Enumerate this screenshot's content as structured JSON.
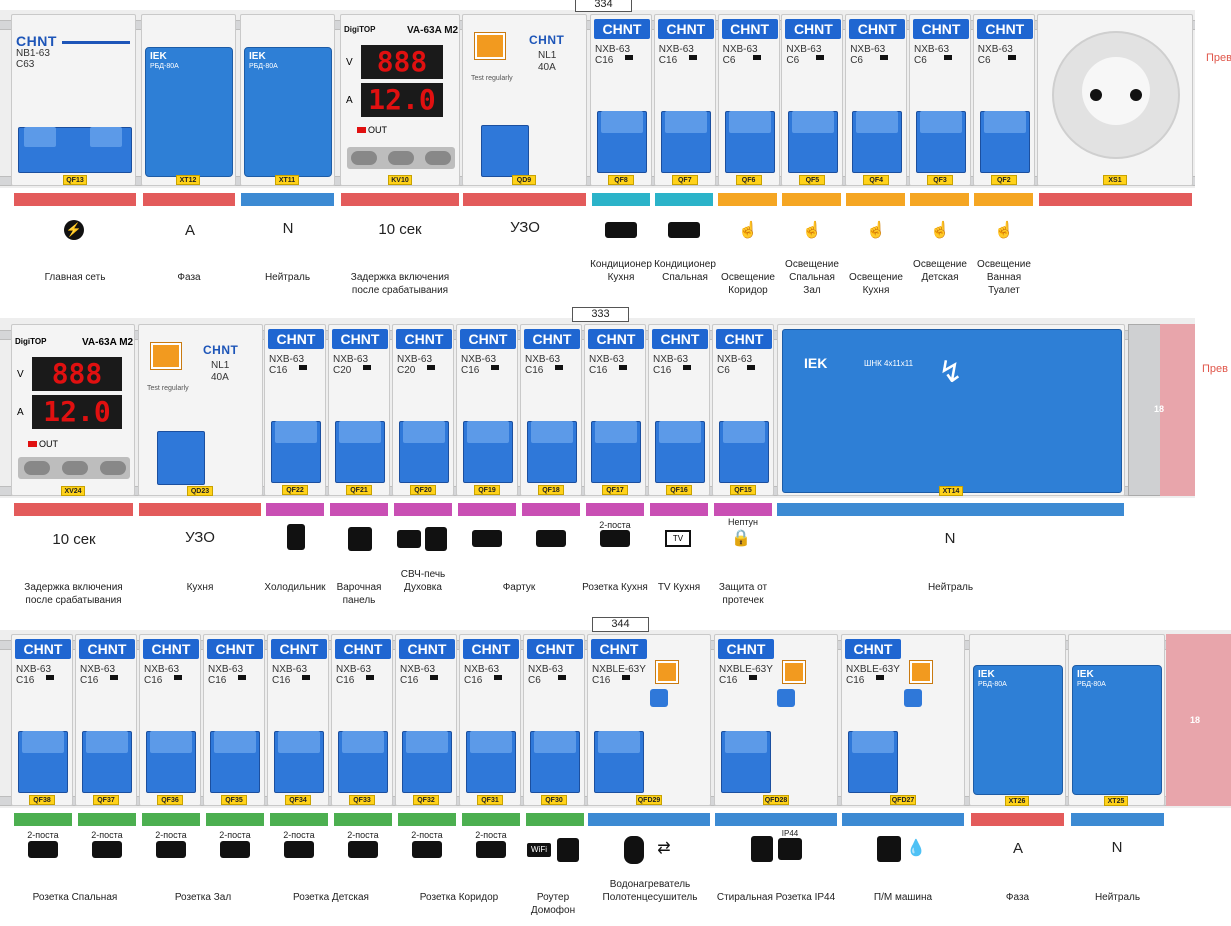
{
  "colors": {
    "red": "#e35b5b",
    "blue": "#3c8ad3",
    "cyan": "#2bb3c9",
    "orange": "#f5a623",
    "magenta": "#c94fb4",
    "green": "#4caf50",
    "pink": "#e8a5ab"
  },
  "row1": {
    "dim": "334",
    "side": "Прев",
    "modules": [
      {
        "brand": "CHNT",
        "model": "NB1-63",
        "rating": "C63",
        "tag": "QF13"
      },
      {
        "brand": "IEK",
        "model": "РБД-80А",
        "tag": "XT12"
      },
      {
        "brand": "IEK",
        "model": "РБД-80А",
        "tag": "XT11"
      },
      {
        "brand": "DigiTOP",
        "model": "VA-63A M2",
        "v": "888",
        "a": "12.0",
        "out": "OUT",
        "tag": "KV10"
      },
      {
        "brand": "CHNT",
        "model": "NL1",
        "rating": "40A",
        "test": "Test regularly",
        "tag": "QD9"
      },
      {
        "brand": "CHNT",
        "model": "NXB-63",
        "rating": "C16",
        "tag": "QF8"
      },
      {
        "brand": "CHNT",
        "model": "NXB-63",
        "rating": "C16",
        "tag": "QF7"
      },
      {
        "brand": "CHNT",
        "model": "NXB-63",
        "rating": "C6",
        "tag": "QF6"
      },
      {
        "brand": "CHNT",
        "model": "NXB-63",
        "rating": "C6",
        "tag": "QF5"
      },
      {
        "brand": "CHNT",
        "model": "NXB-63",
        "rating": "C6",
        "tag": "QF4"
      },
      {
        "brand": "CHNT",
        "model": "NXB-63",
        "rating": "C6",
        "tag": "QF3"
      },
      {
        "brand": "CHNT",
        "model": "NXB-63",
        "rating": "C6",
        "tag": "QF2"
      },
      {
        "tag": "XS1"
      }
    ],
    "labels": [
      "Главная сеть",
      "Фаза",
      "Нейтраль",
      "Задержка включения после срабатывания",
      "",
      "Кондиционер Кухня",
      "Кондиционер Спальная",
      "Освещение Коридор",
      "Освещение Спальная Зал",
      "Освещение Кухня",
      "Освещение Детская",
      "Освещение Ванная Туалет"
    ],
    "bigs": [
      "A",
      "N",
      "10 сек",
      "УЗО"
    ]
  },
  "row2": {
    "dim": "333",
    "side": "Прев",
    "modules": [
      {
        "brand": "DigiTOP",
        "model": "VA-63A M2",
        "v": "888",
        "a": "12.0",
        "out": "OUT",
        "tag": "XV24"
      },
      {
        "brand": "CHNT",
        "model": "NL1",
        "rating": "40A",
        "test": "Test regularly",
        "tag": "QD23"
      },
      {
        "brand": "CHNT",
        "model": "NXB-63",
        "rating": "C16",
        "tag": "QF22"
      },
      {
        "brand": "CHNT",
        "model": "NXB-63",
        "rating": "C20",
        "tag": "QF21"
      },
      {
        "brand": "CHNT",
        "model": "NXB-63",
        "rating": "C20",
        "tag": "QF20"
      },
      {
        "brand": "CHNT",
        "model": "NXB-63",
        "rating": "C16",
        "tag": "QF19"
      },
      {
        "brand": "CHNT",
        "model": "NXB-63",
        "rating": "C16",
        "tag": "QF18"
      },
      {
        "brand": "CHNT",
        "model": "NXB-63",
        "rating": "C16",
        "tag": "QF17"
      },
      {
        "brand": "CHNT",
        "model": "NXB-63",
        "rating": "C16",
        "tag": "QF16"
      },
      {
        "brand": "CHNT",
        "model": "NXB-63",
        "rating": "C6",
        "tag": "QF15"
      },
      {
        "brand": "IEK",
        "model": "ШНК 4х11х11",
        "tag": "XT14"
      }
    ],
    "rail_num": "18",
    "labels": [
      "Задержка включения после срабатывания",
      "Кухня",
      "Холодильник",
      "Варочная панель",
      "СВЧ-печь Духовка",
      "Фартук",
      "Розетка Кухня",
      "TV Кухня",
      "Защита от протечек",
      "Нейтраль"
    ],
    "bigs": [
      "10 сек",
      "УЗО",
      "N"
    ],
    "notes": [
      "2-поста",
      "Нептун"
    ],
    "tv": "TV"
  },
  "row3": {
    "dim": "344",
    "modules": [
      {
        "brand": "CHNT",
        "model": "NXB-63",
        "rating": "C16",
        "tag": "QF38"
      },
      {
        "brand": "CHNT",
        "model": "NXB-63",
        "rating": "C16",
        "tag": "QF37"
      },
      {
        "brand": "CHNT",
        "model": "NXB-63",
        "rating": "C16",
        "tag": "QF36"
      },
      {
        "brand": "CHNT",
        "model": "NXB-63",
        "rating": "C16",
        "tag": "QF35"
      },
      {
        "brand": "CHNT",
        "model": "NXB-63",
        "rating": "C16",
        "tag": "QF34"
      },
      {
        "brand": "CHNT",
        "model": "NXB-63",
        "rating": "C16",
        "tag": "QF33"
      },
      {
        "brand": "CHNT",
        "model": "NXB-63",
        "rating": "C16",
        "tag": "QF32"
      },
      {
        "brand": "CHNT",
        "model": "NXB-63",
        "rating": "C16",
        "tag": "QF31"
      },
      {
        "brand": "CHNT",
        "model": "NXB-63",
        "rating": "C6",
        "tag": "QF30"
      },
      {
        "brand": "CHNT",
        "model": "NXBLE-63Y",
        "rating": "C16",
        "tag": "QFD29"
      },
      {
        "brand": "CHNT",
        "model": "NXBLE-63Y",
        "rating": "C16",
        "tag": "QFD28"
      },
      {
        "brand": "CHNT",
        "model": "NXBLE-63Y",
        "rating": "C16",
        "tag": "QFD27"
      },
      {
        "brand": "IEK",
        "model": "РБД-80А",
        "tag": "XT26"
      },
      {
        "brand": "IEK",
        "model": "РБД-80А",
        "tag": "XT25"
      }
    ],
    "rail_num": "18",
    "labels": [
      "Розетка Спальная",
      "Розетка Зал",
      "Розетка Детская",
      "Розетка Коридор",
      "Роутер Домофон",
      "Водонагреватель Полотенцесушитель",
      "Стиральная Розетка IP44",
      "П/М машина",
      "Фаза",
      "Нейтраль"
    ],
    "notes": [
      "2-поста",
      "IP44"
    ],
    "bigs": [
      "A",
      "N"
    ],
    "wifi": "WiFi"
  }
}
